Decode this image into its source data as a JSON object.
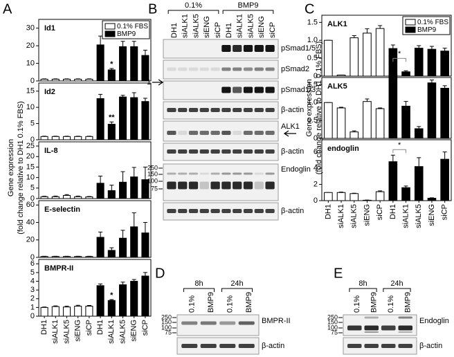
{
  "panel_labels": [
    "A",
    "B",
    "C",
    "D",
    "E"
  ],
  "chart_data": [
    {
      "type": "bar",
      "ylabel": [
        "Gene expression",
        "(fold change relative to DH1 0.1% FBS)"
      ],
      "categories": [
        "DH1",
        "siALK1",
        "siALK5",
        "siENG",
        "siCP",
        "DH1",
        "siALK1",
        "siALK5",
        "siENG",
        "siCP"
      ],
      "series": [
        {
          "name": "0.1% FBS",
          "color": "#ffffff"
        },
        {
          "name": "BMP9",
          "color": "#000000"
        }
      ],
      "legend": "upper right",
      "subplots": [
        {
          "title": "Id1",
          "ylim": [
            0,
            35
          ],
          "yticks": [
            0,
            10,
            20,
            30
          ],
          "series": [
            {
              "values": [
                1,
                1,
                1,
                1,
                1,
                null,
                null,
                null,
                null,
                null
              ],
              "errors": [
                0.2,
                0.2,
                0.2,
                0.2,
                0.2,
                null,
                null,
                null,
                null,
                null
              ]
            },
            {
              "values": [
                null,
                null,
                null,
                null,
                null,
                20.5,
                6.3,
                19.5,
                19.5,
                14.5
              ],
              "errors": [
                null,
                null,
                null,
                null,
                null,
                5,
                0.8,
                3,
                3,
                3
              ]
            }
          ],
          "annotations": [
            {
              "text": "*",
              "series": 1,
              "index": 6
            }
          ]
        },
        {
          "title": "Id2",
          "ylim": [
            0,
            17.5
          ],
          "yticks": [
            0,
            5,
            10,
            15
          ],
          "series": [
            {
              "values": [
                1,
                1,
                1,
                1,
                1,
                null,
                null,
                null,
                null,
                null
              ],
              "errors": [
                0.1,
                0.1,
                0.1,
                0.1,
                0.1,
                null,
                null,
                null,
                null,
                null
              ]
            },
            {
              "values": [
                null,
                null,
                null,
                null,
                null,
                12.7,
                4.8,
                13.2,
                13.0,
                11.8
              ],
              "errors": [
                null,
                null,
                null,
                null,
                null,
                1.3,
                0.7,
                0.5,
                1.5,
                1.0
              ]
            }
          ],
          "annotations": [
            {
              "text": "**",
              "series": 1,
              "index": 6
            }
          ]
        },
        {
          "title": "IL-8",
          "ylim": [
            0,
            27
          ],
          "yticks": [
            0,
            5,
            10,
            15,
            20,
            25
          ],
          "series": [
            {
              "values": [
                0.9,
                0.9,
                1.5,
                0.9,
                0.8,
                null,
                null,
                null,
                null,
                null
              ],
              "errors": [
                0.2,
                0.3,
                0.4,
                0.3,
                0.2,
                null,
                null,
                null,
                null,
                null
              ]
            },
            {
              "values": [
                null,
                null,
                null,
                null,
                null,
                7.3,
                3.8,
                7.8,
                10.3,
                9.0
              ],
              "errors": [
                null,
                null,
                null,
                null,
                null,
                3.4,
                2.6,
                5,
                4.5,
                6
              ]
            }
          ],
          "annotations": []
        },
        {
          "title": "E-selectin",
          "ylim": [
            0,
            65
          ],
          "yticks": [
            0,
            20,
            40,
            60
          ],
          "series": [
            {
              "values": [
                1,
                1,
                1,
                1,
                1,
                null,
                null,
                null,
                null,
                null
              ],
              "errors": [
                0.3,
                0.3,
                0.3,
                0.3,
                0.3,
                null,
                null,
                null,
                null,
                null
              ]
            },
            {
              "values": [
                null,
                null,
                null,
                null,
                null,
                23,
                8,
                22,
                35,
                28
              ],
              "errors": [
                null,
                null,
                null,
                null,
                null,
                6,
                3,
                9,
                16,
                12
              ]
            }
          ],
          "annotations": []
        },
        {
          "title": "BMPR-II",
          "ylim": [
            0,
            6.5
          ],
          "yticks": [
            0,
            1,
            2,
            3,
            4,
            5,
            6
          ],
          "series": [
            {
              "values": [
                1.0,
                1.1,
                1.05,
                1.15,
                1.15,
                null,
                null,
                null,
                null,
                null
              ],
              "errors": [
                0.05,
                0.08,
                0.1,
                0.1,
                0.08,
                null,
                null,
                null,
                null,
                null
              ]
            },
            {
              "values": [
                null,
                null,
                null,
                null,
                null,
                3.5,
                1.8,
                3.6,
                4.0,
                4.6
              ],
              "errors": [
                null,
                null,
                null,
                null,
                null,
                0.2,
                0.1,
                0.3,
                0.2,
                0.4
              ]
            }
          ],
          "annotations": [
            {
              "text": "*",
              "series": 1,
              "index": 6
            }
          ]
        }
      ]
    },
    {
      "type": "bar",
      "ylabel": [
        "Gene expression",
        "(fold change relative to DH1 0.1% FBS)"
      ],
      "categories": [
        "DH1",
        "siALK1",
        "siALK5",
        "siENG",
        "siCP",
        "DH1",
        "siALK1",
        "siALK5",
        "siENG",
        "siCP"
      ],
      "series": [
        {
          "name": "0.1% FBS",
          "color": "#ffffff"
        },
        {
          "name": "BMP9",
          "color": "#000000"
        }
      ],
      "legend": "upper right",
      "subplots": [
        {
          "title": "ALK1",
          "ylim": [
            0,
            1.7
          ],
          "yticks": [
            0,
            0.5,
            {
              "value": 1,
              "label": "1.0"
            },
            1.5
          ],
          "series": [
            {
              "values": [
                1.0,
                0.03,
                1.07,
                1.2,
                1.33,
                null,
                null,
                null,
                null,
                null
              ],
              "errors": [
                0,
                0,
                0.06,
                0.12,
                0.08,
                null,
                null,
                null,
                null,
                null
              ]
            },
            {
              "values": [
                null,
                null,
                null,
                null,
                null,
                0.77,
                0.12,
                0.78,
                0.75,
                0.7
              ],
              "errors": [
                null,
                null,
                null,
                null,
                null,
                0.1,
                0.03,
                0.07,
                0.08,
                0.08
              ]
            }
          ],
          "annotations": []
        },
        {
          "title": "ALK5",
          "ylim": [
            0,
            1.7
          ],
          "yticks": [
            0,
            0.5,
            {
              "value": 1,
              "label": "1.0"
            },
            1.5
          ],
          "series": [
            {
              "values": [
                1.0,
                0.85,
                0.18,
                1.03,
                0.83,
                null,
                null,
                null,
                null,
                null
              ],
              "errors": [
                0,
                0.02,
                0.03,
                0.07,
                0.02,
                null,
                null,
                null,
                null,
                null
              ]
            },
            {
              "values": [
                null,
                null,
                null,
                null,
                null,
                1.78,
                0.9,
                0.27,
                1.55,
                1.4
              ],
              "errors": [
                null,
                null,
                null,
                null,
                null,
                0.3,
                0.13,
                0.06,
                0.08,
                0.07
              ]
            }
          ],
          "annotations": [
            {
              "text": "*",
              "series": 1,
              "from": 5,
              "to": 6
            }
          ]
        },
        {
          "title": "endoglin",
          "ylim": [
            0,
            7.5
          ],
          "yticks": [
            0,
            2,
            4,
            6
          ],
          "series": [
            {
              "values": [
                1.0,
                1.0,
                0.87,
                0.05,
                1.1,
                null,
                null,
                null,
                null,
                null
              ],
              "errors": [
                0,
                0.05,
                0.05,
                0.02,
                0.1,
                null,
                null,
                null,
                null,
                null
              ]
            },
            {
              "values": [
                null,
                null,
                null,
                null,
                null,
                4.8,
                1.6,
                4.2,
                0.3,
                5.1
              ],
              "errors": [
                null,
                null,
                null,
                null,
                null,
                0.8,
                0.2,
                1.1,
                0.05,
                0.9
              ]
            }
          ],
          "annotations": [
            {
              "text": "*",
              "series": 1,
              "from": 5,
              "to": 6
            }
          ]
        }
      ]
    }
  ],
  "blots": {
    "B": {
      "groups": [
        "0.1%",
        "BMP9"
      ],
      "lanes": [
        "DH1",
        "siALK1",
        "siALK5",
        "siENG",
        "siCP",
        "DH1",
        "siALK1",
        "siALK5",
        "siENG",
        "siCP"
      ],
      "rows": [
        "pSmad1/5",
        "pSmad2",
        "pSmad1/3",
        "β-actin",
        "ALK1",
        "β-actin",
        "Endoglin",
        "β-actin"
      ],
      "markers": [
        "250",
        "150",
        "100",
        "75"
      ],
      "arrow_label": "1"
    },
    "D": {
      "groups": [
        "8h",
        "24h"
      ],
      "lanes": [
        "0.1%",
        "BMP9",
        "0.1%",
        "BMP9"
      ],
      "rows": [
        "BMPR-II",
        "β-actin"
      ],
      "markers": [
        "250",
        "150",
        "100",
        "75"
      ]
    },
    "E": {
      "groups": [
        "8h",
        "24h"
      ],
      "lanes": [
        "0.1%",
        "BMP9",
        "0.1%",
        "BMP9"
      ],
      "rows": [
        "Endoglin",
        "β-actin"
      ],
      "markers": [
        "250",
        "150",
        "100",
        "75"
      ]
    }
  }
}
